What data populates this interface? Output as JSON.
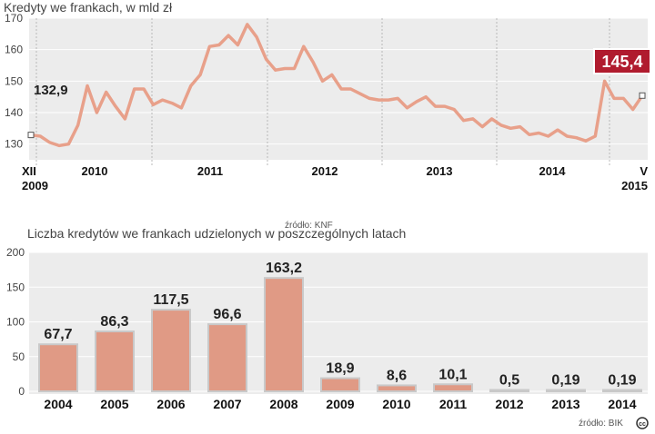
{
  "chart_data": [
    {
      "type": "line",
      "title": "Kredyty we frankach, w mld zł",
      "source": "źródło: KNF",
      "ylim": [
        125,
        170
      ],
      "yticks": [
        "130",
        "140",
        "150",
        "160",
        "170"
      ],
      "grid": true,
      "xticks": [
        {
          "label": "XII",
          "label2": "2009"
        },
        {
          "label": "2010"
        },
        {
          "label": "2011"
        },
        {
          "label": "2012"
        },
        {
          "label": "2013"
        },
        {
          "label": "2014"
        },
        {
          "label": "V",
          "label2": "2015"
        }
      ],
      "start_label": "132,9",
      "end_label": "145,4",
      "series": [
        {
          "values": [
            132.9,
            132.5,
            130.5,
            129.5,
            130,
            136,
            148.5,
            140,
            146.5,
            142,
            138,
            147.5,
            147.5,
            142.5,
            144,
            143,
            141.5,
            148.5,
            152,
            161,
            161.5,
            164.5,
            161.5,
            168,
            164,
            157,
            153.5,
            154,
            154,
            161,
            156,
            150,
            152,
            147.5,
            147.5,
            146,
            144.5,
            144,
            144,
            144.5,
            141.5,
            143.5,
            145,
            142,
            142,
            141,
            137.5,
            138,
            135.5,
            138,
            136,
            135,
            135.5,
            133,
            133.5,
            132.5,
            134.5,
            132.5,
            132,
            131,
            132.5,
            150,
            144.5,
            144.5,
            141,
            145.4
          ]
        }
      ],
      "colors": {
        "line": "#e8a08a",
        "highlight": "#b01b2e"
      }
    },
    {
      "type": "bar",
      "title": "Liczba kredytów we frankach udzielonych w poszczególnych latach",
      "source": "źródło: BIK",
      "categories": [
        "2004",
        "2005",
        "2006",
        "2007",
        "2008",
        "2009",
        "2010",
        "2011",
        "2012",
        "2013",
        "2014"
      ],
      "values": [
        67.7,
        86.3,
        117.5,
        96.6,
        163.2,
        18.9,
        8.6,
        10.1,
        0.5,
        0.19,
        0.19
      ],
      "value_labels": [
        "67,7",
        "86,3",
        "117,5",
        "96,6",
        "163,2",
        "18,9",
        "8,6",
        "10,1",
        "0,5",
        "0,19",
        "0,19"
      ],
      "ylim": [
        0,
        200
      ],
      "yticks": [
        "0",
        "50",
        "100",
        "150",
        "200"
      ],
      "grid": true,
      "colors": {
        "bar": "#e09a85",
        "bar_border": "#c9c9c9"
      }
    }
  ],
  "footer": {
    "cc_badge": "cc"
  }
}
